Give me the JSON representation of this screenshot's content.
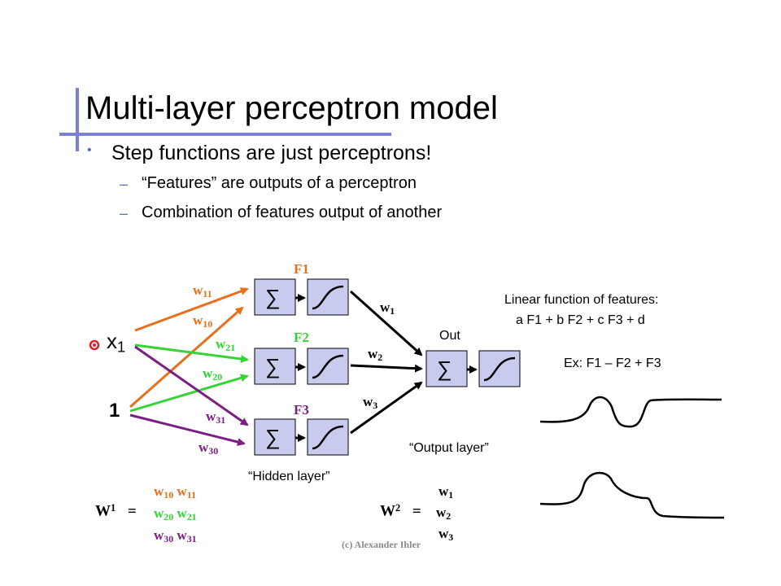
{
  "slide": {
    "title": "Multi-layer perceptron model",
    "bullet": "Step functions are just perceptrons!",
    "sub_bullets": [
      "“Features” are outputs of a perceptron",
      "Combination of features output of another"
    ],
    "dash": "–",
    "bullet_mark": "•"
  },
  "diagram": {
    "inputs": {
      "x": "x",
      "x_sub": "1",
      "one": "1"
    },
    "features": [
      "F1",
      "F2",
      "F3"
    ],
    "weights": {
      "w11": {
        "base": "w",
        "sub": "11"
      },
      "w10": {
        "base": "w",
        "sub": "10"
      },
      "w21": {
        "base": "w",
        "sub": "21"
      },
      "w20": {
        "base": "w",
        "sub": "20"
      },
      "w31": {
        "base": "w",
        "sub": "31"
      },
      "w30": {
        "base": "w",
        "sub": "30"
      },
      "w1": {
        "base": "w",
        "sub": "1"
      },
      "w2": {
        "base": "w",
        "sub": "2"
      },
      "w3": {
        "base": "w",
        "sub": "3"
      }
    },
    "sigma": "∑",
    "out_label": "Out",
    "hidden_layer_label": "“Hidden layer”",
    "output_layer_label": "“Output layer”",
    "linear_title": "Linear function of features:",
    "linear_formula": "a F1 + b F2 + c F3 + d",
    "example": "Ex:  F1 – F2 + F3"
  },
  "matrices": {
    "W1": {
      "name": "W",
      "sup": "1",
      "eq": "="
    },
    "W2": {
      "name": "W",
      "sup": "2",
      "eq": "="
    }
  },
  "footer": "(c) Alexander Ihler",
  "colors": {
    "orange": "#e86f1b",
    "green": "#35d335",
    "purple": "#7b1f80",
    "box_fill": "#c9cbee",
    "accent": "#7b7fd6",
    "pointer": "#e0202a"
  }
}
